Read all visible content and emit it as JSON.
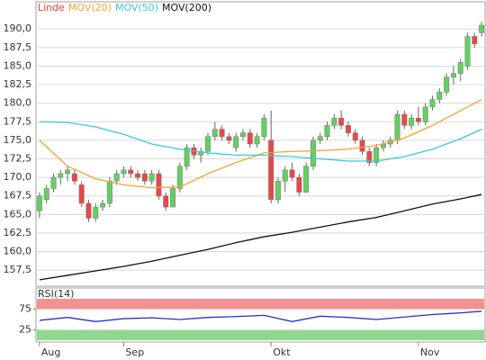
{
  "chart_data": [
    {
      "type": "candlestick",
      "categories": [
        "Aug",
        null,
        null,
        null,
        null,
        null,
        null,
        null,
        null,
        null,
        null,
        null,
        "Sep",
        null,
        null,
        null,
        null,
        null,
        null,
        null,
        null,
        null,
        null,
        null,
        null,
        null,
        null,
        null,
        null,
        null,
        null,
        null,
        null,
        "Okt",
        null,
        null,
        null,
        null,
        null,
        null,
        null,
        null,
        null,
        null,
        null,
        null,
        null,
        null,
        null,
        null,
        null,
        null,
        null,
        null,
        "Nov",
        null,
        null,
        null,
        null,
        null,
        null,
        null,
        null,
        null
      ],
      "series": [
        {
          "name": "Linde",
          "color": "#e53b3b",
          "up_color": "#62d062",
          "down_color": "#e84848",
          "open": [
            165.5,
            167,
            168.5,
            170,
            170.5,
            170.5,
            169,
            166.5,
            164.5,
            166,
            166.5,
            169.5,
            170.5,
            171,
            170.5,
            170.5,
            169.5,
            170.5,
            167.5,
            166,
            168.5,
            171.5,
            174,
            173,
            173.5,
            175.5,
            176.5,
            175.5,
            174,
            175.5,
            176,
            174.5,
            175.5,
            175,
            167,
            169.5,
            171,
            170,
            168,
            171.5,
            175,
            175.5,
            177,
            178,
            177,
            176,
            175,
            173.5,
            172,
            174,
            174.5,
            175,
            178.5,
            177,
            178,
            177.5,
            179.5,
            180.5,
            181.5,
            183.5,
            184,
            185,
            189,
            189.5
          ],
          "high": [
            168,
            169,
            170.5,
            171,
            171.5,
            171,
            169.5,
            167,
            166.5,
            167,
            170,
            171,
            171.5,
            171.5,
            171,
            171,
            171,
            171,
            168,
            169,
            172,
            174.5,
            174.5,
            174,
            176,
            177.5,
            177,
            176,
            176,
            176.5,
            176.5,
            176,
            178.5,
            179,
            170,
            171.5,
            172,
            170.5,
            172,
            175.5,
            176,
            177.5,
            178.5,
            179,
            177.5,
            176.5,
            175.5,
            174,
            174.5,
            175,
            175.5,
            179,
            179,
            178.5,
            179.5,
            180,
            181,
            182,
            184,
            185,
            186,
            189.5,
            189.5,
            191
          ],
          "low": [
            164.5,
            166.5,
            168,
            169,
            169.5,
            169,
            166,
            164,
            164,
            165.5,
            166,
            169,
            170,
            170,
            169.5,
            169,
            169,
            167,
            165.5,
            166,
            168,
            171,
            172.5,
            172,
            173,
            175,
            175,
            174.5,
            173.5,
            175,
            174,
            174,
            175,
            166.5,
            166.5,
            168,
            169.5,
            167.5,
            168,
            171,
            174.5,
            175,
            176.5,
            176.5,
            175.5,
            174.5,
            173,
            171.5,
            171.5,
            173.5,
            174,
            174.5,
            176.5,
            176.5,
            177,
            177,
            179,
            180,
            181,
            182.5,
            183,
            184.5,
            187.5,
            189
          ],
          "close": [
            167.5,
            168.5,
            170,
            170.5,
            171,
            169.5,
            166.5,
            164.5,
            166,
            166.5,
            169.5,
            170.5,
            171,
            170.5,
            170,
            169.5,
            170.5,
            167.5,
            166,
            168.5,
            171.5,
            174,
            173,
            173.5,
            175.5,
            176.5,
            175.5,
            175,
            175.5,
            176,
            174.5,
            175.5,
            178,
            167,
            169.5,
            171,
            170,
            168,
            171.5,
            175,
            175.5,
            177,
            178,
            177,
            176,
            175,
            173.5,
            172,
            174,
            174.5,
            175,
            178.5,
            177,
            178,
            177.5,
            179.5,
            180.5,
            181.5,
            183.5,
            184,
            185.5,
            189,
            188,
            190.5
          ]
        },
        {
          "name": "MOV(20)",
          "type": "line",
          "color": "#f2a431",
          "x": [
            0,
            4,
            8,
            12,
            16,
            20,
            24,
            28,
            32,
            36,
            40,
            44,
            48,
            52,
            56,
            60,
            63
          ],
          "values": [
            175,
            171.5,
            169.8,
            169,
            168.6,
            168.7,
            170.5,
            172,
            173.3,
            173.5,
            173.6,
            173.8,
            174.3,
            175.3,
            177,
            179,
            180.5
          ]
        },
        {
          "name": "MOV(50)",
          "type": "line",
          "color": "#3cc8d8",
          "x": [
            0,
            4,
            8,
            12,
            16,
            20,
            24,
            28,
            32,
            36,
            40,
            44,
            48,
            52,
            56,
            60,
            63
          ],
          "values": [
            177.5,
            177.4,
            176.8,
            175.8,
            174.5,
            173.8,
            173.3,
            173,
            173,
            172.8,
            172.5,
            172.2,
            172.2,
            172.8,
            173.8,
            175.2,
            176.5
          ]
        },
        {
          "name": "MOV(200)",
          "type": "line",
          "color": "#111111",
          "x": [
            0,
            4,
            8,
            12,
            16,
            20,
            24,
            28,
            32,
            36,
            40,
            44,
            48,
            52,
            56,
            60,
            63
          ],
          "values": [
            156.2,
            156.8,
            157.4,
            158,
            158.7,
            159.5,
            160.3,
            161.2,
            162,
            162.6,
            163.3,
            164,
            164.6,
            165.5,
            166.4,
            167.1,
            167.7
          ]
        }
      ],
      "ylim": [
        155.7,
        193.3
      ],
      "yticks": [
        {
          "value": 157.5,
          "label": "157,5"
        },
        {
          "value": 160,
          "label": "160,0"
        },
        {
          "value": 162.5,
          "label": "162,5"
        },
        {
          "value": 165,
          "label": "165,0"
        },
        {
          "value": 167.5,
          "label": "167,5"
        },
        {
          "value": 170,
          "label": "170,0"
        },
        {
          "value": 172.5,
          "label": "172,5"
        },
        {
          "value": 175,
          "label": "175,0"
        },
        {
          "value": 177.5,
          "label": "177,5"
        },
        {
          "value": 180,
          "label": "180,0"
        },
        {
          "value": 182.5,
          "label": "182,5"
        },
        {
          "value": 185,
          "label": "185,0"
        },
        {
          "value": 187.5,
          "label": "187,5"
        },
        {
          "value": 190,
          "label": "190,0"
        }
      ],
      "grid": true
    },
    {
      "type": "line",
      "title": "RSI(14)",
      "series": [
        {
          "color": "#2233cc",
          "x": [
            0,
            4,
            8,
            12,
            16,
            20,
            24,
            28,
            32,
            36,
            40,
            44,
            48,
            52,
            56,
            60,
            63
          ],
          "values": [
            48,
            55,
            45,
            52,
            54,
            50,
            55,
            57,
            60,
            45,
            58,
            55,
            50,
            56,
            62,
            66,
            70
          ]
        }
      ],
      "ylim": [
        0,
        100
      ],
      "yticks": [
        25,
        75
      ],
      "bands": [
        {
          "from": 75,
          "to": 100,
          "color": "#f08080"
        },
        {
          "from": 0,
          "to": 25,
          "color": "#7ed07e"
        }
      ]
    }
  ]
}
